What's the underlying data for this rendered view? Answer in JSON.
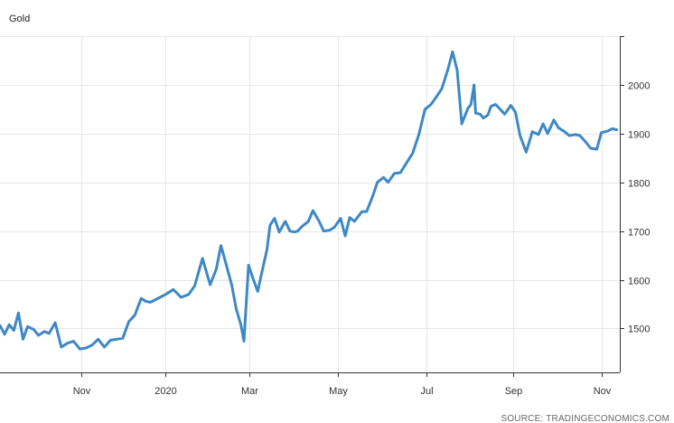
{
  "colors": {
    "line": "#3d88c6",
    "grid": "#e6e6e6",
    "axis": "#333333",
    "background": "#ffffff"
  },
  "source_text": "SOURCE: TRADINGECONOMICS.COM",
  "chart_data": {
    "type": "line",
    "title": "Gold",
    "xlabel": "",
    "ylabel": "",
    "x_ticks": [
      "Nov",
      "2020",
      "Mar",
      "May",
      "Jul",
      "Sep",
      "Nov"
    ],
    "y_ticks": [
      1500,
      1600,
      1700,
      1800,
      1900,
      2000
    ],
    "ylim": [
      1410,
      2100
    ],
    "xlim": [
      "2019-10-03",
      "2020-11-10"
    ],
    "grid": true,
    "legend": "none",
    "series": [
      {
        "name": "",
        "x": [
          "2019-10-03",
          "2019-10-06",
          "2019-10-09",
          "2019-10-12",
          "2019-10-15",
          "2019-10-18",
          "2019-10-21",
          "2019-10-25",
          "2019-10-28",
          "2019-11-01",
          "2019-11-04",
          "2019-11-08",
          "2019-11-12",
          "2019-11-16",
          "2019-11-20",
          "2019-11-24",
          "2019-11-28",
          "2019-12-02",
          "2019-12-06",
          "2019-12-10",
          "2019-12-14",
          "2019-12-18",
          "2019-12-22",
          "2019-12-26",
          "2019-12-30",
          "2020-01-03",
          "2020-01-06",
          "2020-01-09",
          "2020-01-14",
          "2020-01-19",
          "2020-01-24",
          "2020-01-29",
          "2020-02-03",
          "2020-02-07",
          "2020-02-12",
          "2020-02-17",
          "2020-02-21",
          "2020-02-24",
          "2020-02-26",
          "2020-03-02",
          "2020-03-05",
          "2020-03-08",
          "2020-03-10",
          "2020-03-13",
          "2020-03-16",
          "2020-03-19",
          "2020-03-21",
          "2020-03-23",
          "2020-03-25",
          "2020-03-27",
          "2020-03-30",
          "2020-04-02",
          "2020-04-06",
          "2020-04-09",
          "2020-04-12",
          "2020-04-14",
          "2020-04-17",
          "2020-04-21",
          "2020-04-24",
          "2020-04-28",
          "2020-05-01",
          "2020-05-05",
          "2020-05-08",
          "2020-05-12",
          "2020-05-15",
          "2020-05-18",
          "2020-05-21",
          "2020-05-26",
          "2020-05-29",
          "2020-06-02",
          "2020-06-05",
          "2020-06-09",
          "2020-06-12",
          "2020-06-16",
          "2020-06-20",
          "2020-06-24",
          "2020-06-28",
          "2020-07-02",
          "2020-07-06",
          "2020-07-10",
          "2020-07-14",
          "2020-07-17",
          "2020-07-21",
          "2020-07-24",
          "2020-07-27",
          "2020-07-30",
          "2020-08-03",
          "2020-08-05",
          "2020-08-07",
          "2020-08-08",
          "2020-08-11",
          "2020-08-13",
          "2020-08-16",
          "2020-08-18",
          "2020-08-21",
          "2020-08-24",
          "2020-08-27",
          "2020-08-31",
          "2020-09-03",
          "2020-09-06",
          "2020-09-10",
          "2020-09-14",
          "2020-09-18",
          "2020-09-21",
          "2020-09-24",
          "2020-09-28",
          "2020-10-01",
          "2020-10-05",
          "2020-10-08",
          "2020-10-12",
          "2020-10-15",
          "2020-10-19",
          "2020-10-22",
          "2020-10-26",
          "2020-10-29",
          "2020-11-02",
          "2020-11-05",
          "2020-11-08"
        ],
        "values": [
          1506,
          1488,
          1508,
          1496,
          1532,
          1478,
          1504,
          1498,
          1486,
          1494,
          1490,
          1512,
          1462,
          1470,
          1474,
          1458,
          1460,
          1466,
          1478,
          1462,
          1476,
          1478,
          1480,
          1514,
          1528,
          1562,
          1556,
          1554,
          1562,
          1570,
          1580,
          1564,
          1570,
          1588,
          1644,
          1590,
          1622,
          1670,
          1648,
          1590,
          1540,
          1508,
          1474,
          1630,
          1602,
          1576,
          1606,
          1634,
          1662,
          1712,
          1726,
          1698,
          1720,
          1700,
          1698,
          1700,
          1710,
          1720,
          1742,
          1720,
          1700,
          1702,
          1708,
          1726,
          1690,
          1728,
          1720,
          1740,
          1740,
          1772,
          1800,
          1810,
          1800,
          1818,
          1820,
          1840,
          1860,
          1898,
          1950,
          1960,
          1978,
          1992,
          2032,
          2068,
          2030,
          1920,
          1952,
          1960,
          2000,
          1942,
          1940,
          1932,
          1938,
          1956,
          1960,
          1950,
          1940,
          1958,
          1944,
          1896,
          1862,
          1904,
          1898,
          1920,
          1900,
          1928,
          1912,
          1904,
          1896,
          1898,
          1896,
          1882,
          1870,
          1868,
          1902,
          1905,
          1910,
          1908
        ]
      }
    ]
  }
}
